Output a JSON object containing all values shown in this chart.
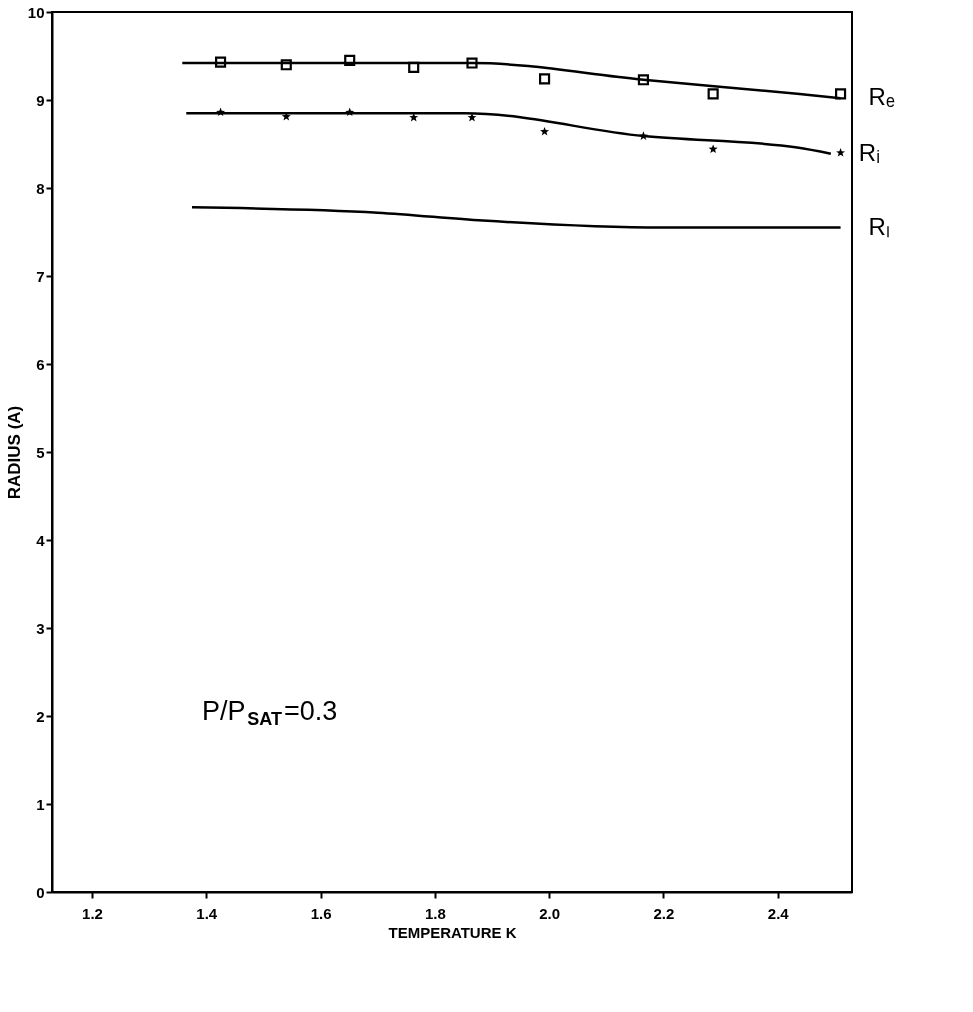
{
  "chart_data": {
    "type": "scatter",
    "xlabel": "TEMPERATURE K",
    "ylabel": "RADIUS (A)",
    "xlim": [
      1.13,
      2.53
    ],
    "ylim": [
      0,
      10
    ],
    "xticks": [
      {
        "value": 1.2,
        "label": "1.2"
      },
      {
        "value": 1.4,
        "label": "1.4"
      },
      {
        "value": 1.6,
        "label": "1.6"
      },
      {
        "value": 1.8,
        "label": "1.8"
      },
      {
        "value": 2.0,
        "label": "2.0"
      },
      {
        "value": 2.2,
        "label": "2.2"
      },
      {
        "value": 2.4,
        "label": "2.4"
      }
    ],
    "yticks": [
      0,
      1,
      2,
      3,
      4,
      5,
      6,
      7,
      8,
      9,
      10
    ],
    "grid": false,
    "annotations": [
      "P/P$_{SAT}$=0.3"
    ],
    "series": [
      {
        "marker": "square",
        "color": "#000000",
        "x": [
          1.425,
          1.54,
          1.651,
          1.763,
          1.865,
          1.992,
          2.165,
          2.287,
          2.51
        ],
        "values": [
          9.43,
          9.4,
          9.45,
          9.37,
          9.42,
          9.24,
          9.23,
          9.07,
          9.07
        ]
      },
      {
        "type": "line",
        "name": "Rₑ",
        "color": "#000000",
        "x": [
          1.358,
          1.865,
          2.165,
          2.434,
          2.51
        ],
        "values": [
          9.42,
          9.42,
          9.23,
          9.07,
          9.02
        ]
      },
      {
        "marker": "star",
        "color": "#000000",
        "x": [
          1.425,
          1.54,
          1.651,
          1.763,
          1.865,
          1.992,
          2.165,
          2.287,
          2.51
        ],
        "values": [
          8.86,
          8.81,
          8.86,
          8.8,
          8.8,
          8.64,
          8.59,
          8.44,
          8.4
        ]
      },
      {
        "type": "line",
        "name": "Rᵢ",
        "color": "#000000",
        "x": [
          1.365,
          1.852,
          2.165,
          2.434,
          2.493
        ],
        "values": [
          8.85,
          8.85,
          8.59,
          8.46,
          8.39
        ]
      },
      {
        "type": "line",
        "name": "Rₗ",
        "color": "#000000",
        "x": [
          1.375,
          1.7,
          1.884,
          2.2,
          2.51
        ],
        "values": [
          7.78,
          7.72,
          7.63,
          7.55,
          7.55
        ]
      }
    ]
  }
}
